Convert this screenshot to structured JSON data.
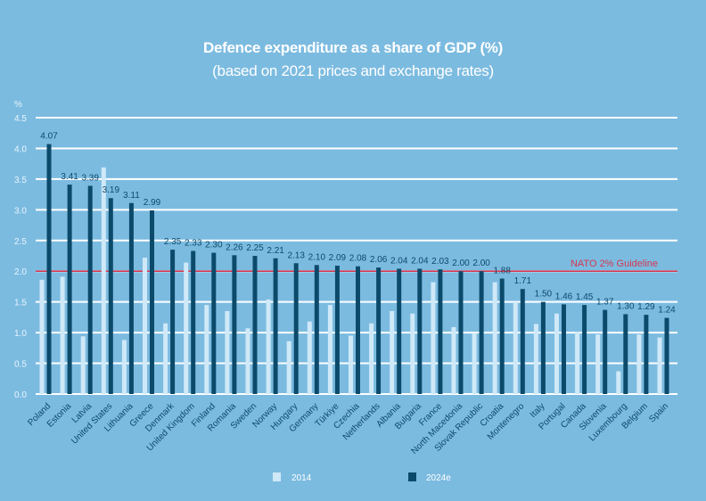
{
  "chart_data": {
    "type": "bar",
    "title": "Defence expenditure as a share of GDP (%)",
    "subtitle": "(based on 2021 prices and exchange rates)",
    "ylabel": "%",
    "ylim": [
      0,
      4.5
    ],
    "yticks": [
      "0.0",
      "0.5",
      "1.0",
      "1.5",
      "2.0",
      "2.5",
      "3.0",
      "3.5",
      "4.0",
      "4.5"
    ],
    "grid": true,
    "legend_position": "bottom",
    "reference_line": {
      "value": 2.0,
      "label": "NATO 2% Guideline",
      "color": "#d4374f"
    },
    "categories": [
      "Poland",
      "Estonia",
      "Latvia",
      "United States",
      "Lithuania",
      "Greece",
      "Denmark",
      "United Kingdom",
      "Finland",
      "Romania",
      "Sweden",
      "Norway",
      "Hungary",
      "Germany",
      "Türkiye",
      "Czechia",
      "Netherlands",
      "Albania",
      "Bulgaria",
      "France",
      "North Macedonia",
      "Slovak Republic",
      "Croatia",
      "Montenegro",
      "Italy",
      "Portugal",
      "Canada",
      "Slovenia",
      "Luxembourg",
      "Belgium",
      "Spain"
    ],
    "series": [
      {
        "name": "2014",
        "color": "#cfe9f8",
        "values": [
          1.86,
          1.91,
          0.94,
          3.69,
          0.88,
          2.22,
          1.15,
          2.14,
          1.45,
          1.35,
          1.07,
          1.54,
          0.86,
          1.18,
          1.45,
          0.95,
          1.15,
          1.35,
          1.31,
          1.82,
          1.09,
          0.99,
          1.82,
          1.5,
          1.14,
          1.31,
          1.01,
          0.97,
          0.37,
          0.97,
          0.92
        ]
      },
      {
        "name": "2024e",
        "color": "#0b4a6a",
        "values": [
          4.07,
          3.41,
          3.39,
          3.19,
          3.11,
          2.99,
          2.35,
          2.33,
          2.3,
          2.26,
          2.25,
          2.21,
          2.13,
          2.1,
          2.09,
          2.08,
          2.06,
          2.04,
          2.04,
          2.03,
          2.0,
          2.0,
          1.88,
          1.71,
          1.5,
          1.46,
          1.45,
          1.37,
          1.3,
          1.29,
          1.24
        ],
        "labels": [
          "4.07",
          "3.41",
          "3.39",
          "3.19",
          "3.11",
          "2.99",
          "2.35",
          "2.33",
          "2.30",
          "2.26",
          "2.25",
          "2.21",
          "2.13",
          "2.10",
          "2.09",
          "2.08",
          "2.06",
          "2.04",
          "2.04",
          "2.03",
          "2.00",
          "2.00",
          "1.88",
          "1.71",
          "1.50",
          "1.46",
          "1.45",
          "1.37",
          "1.30",
          "1.29",
          "1.24"
        ]
      }
    ]
  }
}
